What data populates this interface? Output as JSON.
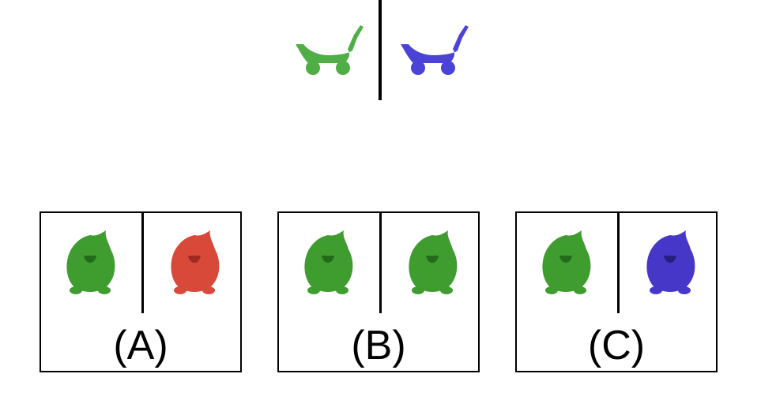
{
  "top": {
    "left_item": {
      "icon": "cart-icon",
      "color": "#4fae45"
    },
    "right_item": {
      "icon": "cart-icon",
      "color": "#4b43d6"
    }
  },
  "options": [
    {
      "label": "(A)",
      "left_color": "#3f9c2f",
      "right_color": "#d8493a"
    },
    {
      "label": "(B)",
      "left_color": "#3f9c2f",
      "right_color": "#3f9c2f"
    },
    {
      "label": "(C)",
      "left_color": "#3f9c2f",
      "right_color": "#4637c9"
    }
  ]
}
